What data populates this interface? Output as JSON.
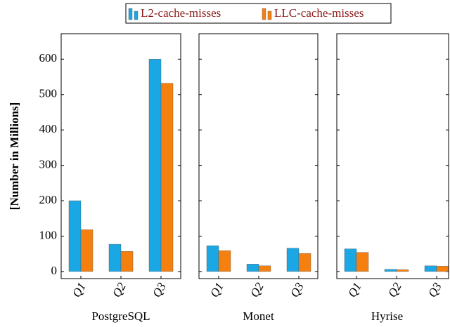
{
  "chart_data": [
    {
      "type": "bar",
      "xlabel": "PostgreSQL",
      "ylabel": "[Number in Millions]",
      "categories": [
        "Q1",
        "Q2",
        "Q3"
      ],
      "series": [
        {
          "name": "L2-cache-misses",
          "color": "#1aa7e3",
          "values": [
            200,
            77,
            600
          ]
        },
        {
          "name": "LLC-cache-misses",
          "color": "#f6800f",
          "values": [
            118,
            57,
            532
          ]
        }
      ],
      "ylim": [
        -20,
        672
      ],
      "yticks": [
        0,
        100,
        200,
        300,
        400,
        500,
        600
      ]
    },
    {
      "type": "bar",
      "xlabel": "Monet",
      "categories": [
        "Q1",
        "Q2",
        "Q3"
      ],
      "series": [
        {
          "name": "L2-cache-misses",
          "color": "#1aa7e3",
          "values": [
            73,
            21,
            66
          ]
        },
        {
          "name": "LLC-cache-misses",
          "color": "#f6800f",
          "values": [
            59,
            16,
            51
          ]
        }
      ],
      "ylim": [
        -20,
        672
      ],
      "yticks": [
        0,
        100,
        200,
        300,
        400,
        500,
        600
      ]
    },
    {
      "type": "bar",
      "xlabel": "Hyrise",
      "categories": [
        "Q1",
        "Q2",
        "Q3"
      ],
      "series": [
        {
          "name": "L2-cache-misses",
          "color": "#1aa7e3",
          "values": [
            64,
            6,
            16
          ]
        },
        {
          "name": "LLC-cache-misses",
          "color": "#f6800f",
          "values": [
            54,
            5,
            15
          ]
        }
      ],
      "ylim": [
        -20,
        672
      ],
      "yticks": [
        0,
        100,
        200,
        300,
        400,
        500,
        600
      ]
    }
  ]
}
